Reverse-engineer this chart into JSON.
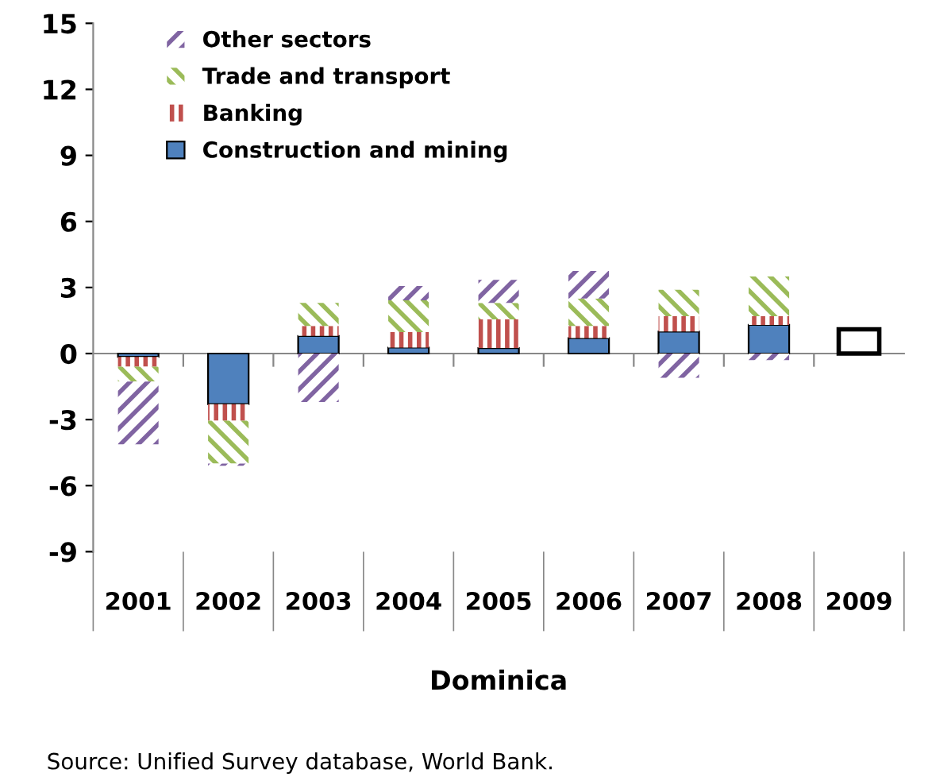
{
  "chart_data": {
    "type": "bar",
    "xlabel": "Dominica",
    "categories": [
      "2001",
      "2002",
      "2003",
      "2004",
      "2005",
      "2006",
      "2007",
      "2008",
      "2009"
    ],
    "stacked": true,
    "series": [
      {
        "name": "Construction and mining",
        "color": "#4f81bd",
        "values": [
          -0.15,
          -2.3,
          0.8,
          0.27,
          0.25,
          0.7,
          1.0,
          1.3,
          null
        ]
      },
      {
        "name": "Banking",
        "color": "#c0504d",
        "values": [
          -0.45,
          -0.75,
          0.45,
          0.7,
          1.3,
          0.55,
          0.7,
          0.4,
          null
        ]
      },
      {
        "name": "Trade and transport",
        "color": "#9bbb59",
        "values": [
          -0.67,
          -1.95,
          1.05,
          1.45,
          0.75,
          1.25,
          1.2,
          1.8,
          null
        ]
      },
      {
        "name": "Other sectors",
        "color": "#8064a2",
        "values": [
          -2.85,
          -0.1,
          -2.2,
          0.65,
          1.05,
          1.25,
          -1.1,
          -0.3,
          null
        ]
      },
      {
        "color": "#ffffff",
        "values": [
          null,
          null,
          null,
          null,
          null,
          null,
          null,
          null,
          1.1
        ]
      }
    ],
    "ylim": [
      -9,
      15
    ],
    "yticks": [
      -9,
      -6,
      -3,
      0,
      3,
      6,
      9,
      12,
      15
    ],
    "legend": "top left",
    "annotations": [
      "Source: Unified Survey database, World Bank."
    ]
  }
}
